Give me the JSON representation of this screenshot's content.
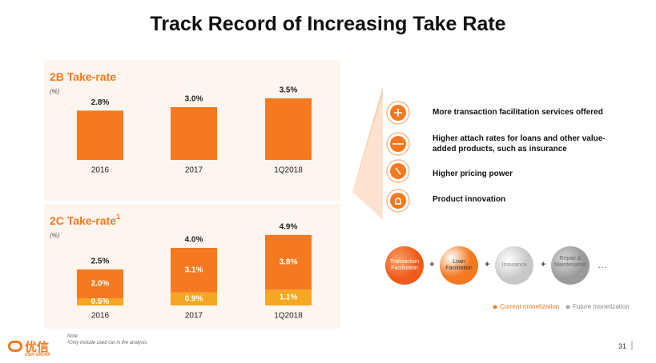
{
  "title": "Track Record of Increasing Take Rate",
  "chart_data": [
    {
      "type": "bar",
      "title": "2B Take-rate",
      "unit_label": "(%)",
      "categories": [
        "2016",
        "2017",
        "1Q2018"
      ],
      "values": [
        2.8,
        3.0,
        3.5
      ],
      "value_labels": [
        "2.8%",
        "3.0%",
        "3.5%"
      ],
      "color": "#f47920"
    },
    {
      "type": "stacked_bar",
      "title": "2C Take-rate",
      "title_superscript": "1",
      "unit_label": "(%)",
      "categories": [
        "2016",
        "2017",
        "1Q2018"
      ],
      "series": [
        {
          "color": "#f5a623",
          "values": [
            0.5,
            0.9,
            1.1
          ],
          "value_labels": [
            "0.5%",
            "0.9%",
            "1.1%"
          ]
        },
        {
          "color": "#f47920",
          "values": [
            2.0,
            3.1,
            3.8
          ],
          "value_labels": [
            "2.0%",
            "3.1%",
            "3.8%"
          ]
        }
      ],
      "totals": [
        2.5,
        4.0,
        4.9
      ],
      "total_labels": [
        "2.5%",
        "4.0%",
        "4.9%"
      ]
    }
  ],
  "drivers": [
    "More transaction facilitation services offered",
    "Higher attach rates for loans and other value-added products, such as insurance",
    "Higher pricing power",
    "Product innovation"
  ],
  "flow": {
    "nodes": [
      "Transaction Facilitation",
      "Loan Facilitation",
      "Insurance",
      "Repair & Maintenance"
    ],
    "joiner": "+",
    "more": "…"
  },
  "legend": {
    "current": "Current monetization",
    "future": "Future monetization"
  },
  "note": {
    "heading": "Note:",
    "text": "¹Only include used car in the analysis"
  },
  "logo": {
    "name": "优信",
    "sub": "USIN GROUP"
  },
  "page_number": "31"
}
